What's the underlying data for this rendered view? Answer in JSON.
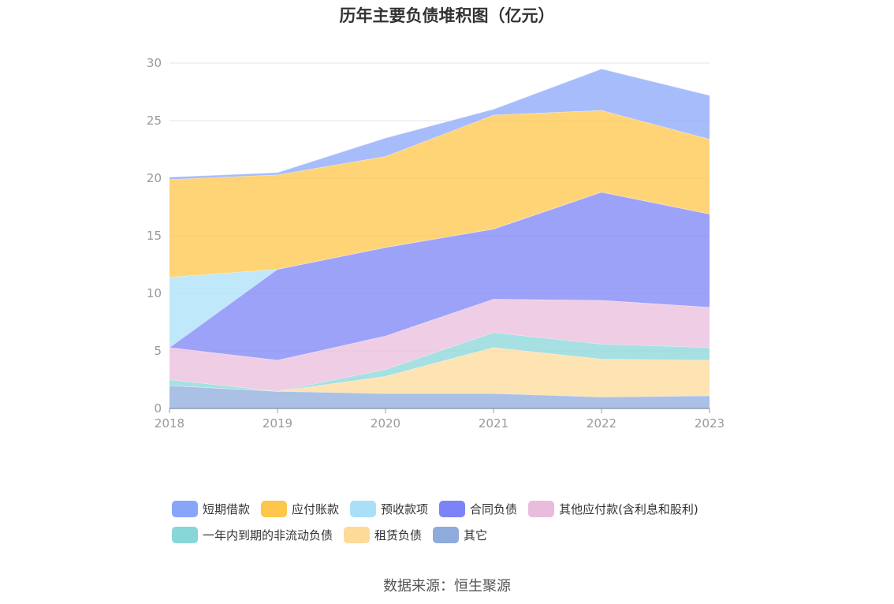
{
  "chart_data": {
    "type": "area",
    "stacked": true,
    "title": "历年主要负债堆积图（亿元）",
    "x": [
      "2018",
      "2019",
      "2020",
      "2021",
      "2022",
      "2023"
    ],
    "ylim": [
      0,
      30
    ],
    "yticks": [
      0,
      5,
      10,
      15,
      20,
      25,
      30
    ],
    "grid": true,
    "legend_position": "bottom",
    "series": [
      {
        "name": "其它",
        "color": "#8eabdc",
        "values": [
          2.0,
          1.5,
          1.3,
          1.3,
          1.0,
          1.1
        ]
      },
      {
        "name": "租赁负债",
        "color": "#fdd99a",
        "values": [
          0.0,
          0.0,
          1.5,
          4.0,
          3.3,
          3.1
        ]
      },
      {
        "name": "一年内到期的非流动负债",
        "color": "#88d6d8",
        "values": [
          0.5,
          0.0,
          0.6,
          1.3,
          1.3,
          1.1
        ]
      },
      {
        "name": "其他应付款(含利息和股利)",
        "color": "#e9bcdc",
        "values": [
          2.8,
          2.7,
          2.9,
          2.9,
          3.8,
          3.5
        ]
      },
      {
        "name": "合同负债",
        "color": "#7c83f7",
        "values": [
          0.0,
          7.9,
          7.7,
          6.1,
          9.4,
          8.1
        ]
      },
      {
        "name": "预收款项",
        "color": "#a9e0f8",
        "values": [
          6.1,
          0.0,
          0.0,
          0.0,
          0.0,
          0.0
        ]
      },
      {
        "name": "应付账款",
        "color": "#fec64a",
        "values": [
          8.5,
          8.2,
          7.9,
          9.9,
          7.1,
          6.5
        ]
      },
      {
        "name": "短期借款",
        "color": "#89a5fa",
        "values": [
          0.2,
          0.2,
          1.6,
          0.5,
          3.6,
          3.8
        ]
      }
    ]
  },
  "legend_rows": [
    [
      "短期借款",
      "应付账款",
      "预收款项",
      "合同负债",
      "其他应付款(含利息和股利)"
    ],
    [
      "一年内到期的非流动负债",
      "租赁负债",
      "其它"
    ]
  ],
  "source": "数据来源：恒生聚源",
  "colors": {
    "axis": "#999999",
    "grid": "#e6e6e6",
    "text": "#333333"
  }
}
